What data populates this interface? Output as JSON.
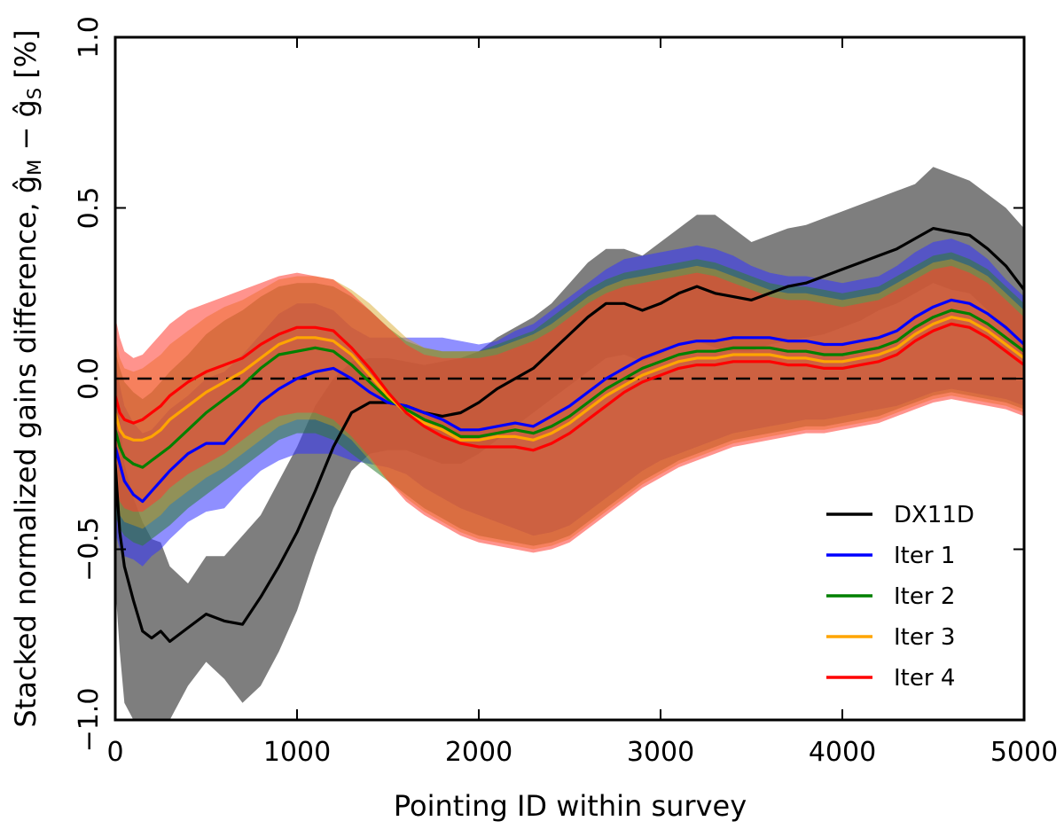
{
  "chart_data": {
    "type": "line",
    "xlabel": "Pointing ID within survey",
    "ylabel_main": "Stacked normalized gains difference, ",
    "ylabel_math": "ĝ",
    "ylabel_sub_m": "M",
    "ylabel_minus": " − ",
    "ylabel_sub_s": "S",
    "ylabel_unit": " [%]",
    "xlim": [
      0,
      5000
    ],
    "ylim": [
      -1.0,
      1.0
    ],
    "xticks": [
      0,
      1000,
      2000,
      3000,
      4000,
      5000
    ],
    "xtick_labels": [
      "0",
      "1000",
      "2000",
      "3000",
      "4000",
      "5000"
    ],
    "yticks": [
      -1.0,
      -0.5,
      0.0,
      0.5,
      1.0
    ],
    "ytick_labels": [
      "−1.0",
      "−0.5",
      "0.0",
      "0.5",
      "1.0"
    ],
    "reference_line": {
      "y": 0.0,
      "style": "dashed",
      "color": "#000000"
    },
    "legend_position": "lower-right",
    "series": [
      {
        "name": "DX11D",
        "color": "#000000",
        "band_color": "#707070",
        "band_opacity": 0.9,
        "x": [
          0,
          25,
          50,
          100,
          150,
          200,
          250,
          300,
          400,
          500,
          600,
          700,
          800,
          900,
          1000,
          1100,
          1200,
          1300,
          1400,
          1500,
          1600,
          1700,
          1800,
          1900,
          2000,
          2100,
          2200,
          2300,
          2400,
          2500,
          2600,
          2700,
          2800,
          2900,
          3000,
          3100,
          3200,
          3300,
          3400,
          3500,
          3600,
          3700,
          3800,
          3900,
          4000,
          4100,
          4200,
          4300,
          4400,
          4500,
          4600,
          4700,
          4800,
          4900,
          5000
        ],
        "y": [
          -0.25,
          -0.45,
          -0.55,
          -0.65,
          -0.74,
          -0.76,
          -0.74,
          -0.77,
          -0.73,
          -0.69,
          -0.71,
          -0.72,
          -0.64,
          -0.55,
          -0.45,
          -0.33,
          -0.2,
          -0.1,
          -0.07,
          -0.07,
          -0.08,
          -0.1,
          -0.11,
          -0.1,
          -0.07,
          -0.03,
          0.0,
          0.03,
          0.08,
          0.13,
          0.18,
          0.22,
          0.22,
          0.2,
          0.22,
          0.25,
          0.27,
          0.25,
          0.24,
          0.23,
          0.25,
          0.27,
          0.28,
          0.3,
          0.32,
          0.34,
          0.36,
          0.38,
          0.41,
          0.44,
          0.43,
          0.42,
          0.38,
          0.33,
          0.26
        ],
        "lower": [
          -0.6,
          -0.8,
          -0.95,
          -1.0,
          -1.02,
          -1.03,
          -1.02,
          -1.0,
          -0.9,
          -0.83,
          -0.88,
          -0.95,
          -0.9,
          -0.8,
          -0.68,
          -0.52,
          -0.38,
          -0.27,
          -0.22,
          -0.21,
          -0.21,
          -0.23,
          -0.25,
          -0.25,
          -0.22,
          -0.18,
          -0.14,
          -0.1,
          -0.06,
          -0.02,
          0.02,
          0.06,
          0.07,
          0.05,
          0.07,
          0.1,
          0.11,
          0.09,
          0.08,
          0.08,
          0.1,
          0.11,
          0.12,
          0.13,
          0.15,
          0.17,
          0.2,
          0.22,
          0.25,
          0.28,
          0.26,
          0.25,
          0.2,
          0.14,
          0.06
        ],
        "upper": [
          0.05,
          -0.12,
          -0.25,
          -0.35,
          -0.42,
          -0.47,
          -0.48,
          -0.55,
          -0.6,
          -0.52,
          -0.52,
          -0.46,
          -0.4,
          -0.3,
          -0.2,
          -0.08,
          0.0,
          0.05,
          0.06,
          0.06,
          0.05,
          0.04,
          0.05,
          0.06,
          0.08,
          0.12,
          0.15,
          0.18,
          0.22,
          0.28,
          0.34,
          0.38,
          0.38,
          0.36,
          0.4,
          0.44,
          0.48,
          0.48,
          0.44,
          0.4,
          0.42,
          0.44,
          0.45,
          0.47,
          0.49,
          0.51,
          0.53,
          0.55,
          0.57,
          0.62,
          0.6,
          0.58,
          0.54,
          0.5,
          0.44
        ]
      },
      {
        "name": "Iter 1",
        "color": "#0000ff",
        "band_color": "#3333ff",
        "band_opacity": 0.55,
        "x": [
          0,
          25,
          50,
          100,
          150,
          200,
          250,
          300,
          400,
          500,
          600,
          700,
          800,
          900,
          1000,
          1100,
          1200,
          1300,
          1400,
          1500,
          1600,
          1700,
          1800,
          1900,
          2000,
          2100,
          2200,
          2300,
          2400,
          2500,
          2600,
          2700,
          2800,
          2900,
          3000,
          3100,
          3200,
          3300,
          3400,
          3500,
          3600,
          3700,
          3800,
          3900,
          4000,
          4100,
          4200,
          4300,
          4400,
          4500,
          4600,
          4700,
          4800,
          4900,
          5000
        ],
        "y": [
          -0.2,
          -0.25,
          -0.3,
          -0.34,
          -0.36,
          -0.33,
          -0.3,
          -0.27,
          -0.22,
          -0.19,
          -0.19,
          -0.13,
          -0.07,
          -0.03,
          0.0,
          0.02,
          0.03,
          0.0,
          -0.04,
          -0.07,
          -0.08,
          -0.1,
          -0.12,
          -0.15,
          -0.15,
          -0.14,
          -0.13,
          -0.14,
          -0.11,
          -0.08,
          -0.04,
          0.0,
          0.03,
          0.06,
          0.08,
          0.1,
          0.11,
          0.11,
          0.12,
          0.12,
          0.12,
          0.11,
          0.11,
          0.1,
          0.1,
          0.11,
          0.12,
          0.14,
          0.18,
          0.21,
          0.23,
          0.22,
          0.19,
          0.15,
          0.1
        ],
        "lower": [
          -0.45,
          -0.5,
          -0.52,
          -0.53,
          -0.55,
          -0.52,
          -0.5,
          -0.47,
          -0.42,
          -0.39,
          -0.38,
          -0.32,
          -0.27,
          -0.24,
          -0.22,
          -0.22,
          -0.22,
          -0.24,
          -0.25,
          -0.26,
          -0.28,
          -0.32,
          -0.35,
          -0.38,
          -0.4,
          -0.42,
          -0.44,
          -0.46,
          -0.45,
          -0.43,
          -0.39,
          -0.35,
          -0.31,
          -0.27,
          -0.24,
          -0.22,
          -0.2,
          -0.18,
          -0.16,
          -0.15,
          -0.14,
          -0.13,
          -0.12,
          -0.12,
          -0.11,
          -0.1,
          -0.09,
          -0.08,
          -0.06,
          -0.04,
          -0.03,
          -0.04,
          -0.05,
          -0.06,
          -0.08
        ],
        "upper": [
          0.05,
          -0.02,
          -0.08,
          -0.13,
          -0.16,
          -0.15,
          -0.12,
          -0.09,
          -0.05,
          0.0,
          0.02,
          0.07,
          0.13,
          0.19,
          0.22,
          0.22,
          0.2,
          0.15,
          0.12,
          0.12,
          0.12,
          0.12,
          0.12,
          0.11,
          0.1,
          0.11,
          0.14,
          0.16,
          0.2,
          0.24,
          0.28,
          0.32,
          0.35,
          0.36,
          0.37,
          0.38,
          0.39,
          0.38,
          0.36,
          0.33,
          0.31,
          0.3,
          0.3,
          0.29,
          0.28,
          0.29,
          0.3,
          0.33,
          0.37,
          0.4,
          0.41,
          0.39,
          0.35,
          0.29,
          0.24
        ]
      },
      {
        "name": "Iter 2",
        "color": "#008000",
        "band_color": "#2e7d32",
        "band_opacity": 0.55,
        "x": [
          0,
          25,
          50,
          100,
          150,
          200,
          250,
          300,
          400,
          500,
          600,
          700,
          800,
          900,
          1000,
          1100,
          1200,
          1300,
          1400,
          1500,
          1600,
          1700,
          1800,
          1900,
          2000,
          2100,
          2200,
          2300,
          2400,
          2500,
          2600,
          2700,
          2800,
          2900,
          3000,
          3100,
          3200,
          3300,
          3400,
          3500,
          3600,
          3700,
          3800,
          3900,
          4000,
          4100,
          4200,
          4300,
          4400,
          4500,
          4600,
          4700,
          4800,
          4900,
          5000
        ],
        "y": [
          -0.15,
          -0.2,
          -0.23,
          -0.25,
          -0.26,
          -0.24,
          -0.22,
          -0.2,
          -0.15,
          -0.1,
          -0.06,
          -0.02,
          0.03,
          0.07,
          0.08,
          0.09,
          0.08,
          0.04,
          -0.01,
          -0.06,
          -0.09,
          -0.12,
          -0.14,
          -0.17,
          -0.17,
          -0.16,
          -0.15,
          -0.16,
          -0.14,
          -0.11,
          -0.07,
          -0.03,
          0.0,
          0.03,
          0.05,
          0.07,
          0.08,
          0.08,
          0.09,
          0.09,
          0.09,
          0.08,
          0.08,
          0.07,
          0.07,
          0.08,
          0.09,
          0.11,
          0.15,
          0.18,
          0.2,
          0.19,
          0.16,
          0.12,
          0.08
        ],
        "lower": [
          -0.4,
          -0.44,
          -0.46,
          -0.48,
          -0.49,
          -0.47,
          -0.45,
          -0.43,
          -0.38,
          -0.34,
          -0.3,
          -0.26,
          -0.22,
          -0.18,
          -0.16,
          -0.16,
          -0.18,
          -0.22,
          -0.26,
          -0.3,
          -0.34,
          -0.38,
          -0.41,
          -0.44,
          -0.46,
          -0.47,
          -0.48,
          -0.49,
          -0.48,
          -0.46,
          -0.42,
          -0.38,
          -0.34,
          -0.3,
          -0.27,
          -0.24,
          -0.22,
          -0.2,
          -0.18,
          -0.17,
          -0.16,
          -0.15,
          -0.14,
          -0.14,
          -0.13,
          -0.12,
          -0.11,
          -0.09,
          -0.07,
          -0.05,
          -0.04,
          -0.05,
          -0.06,
          -0.07,
          -0.09
        ],
        "upper": [
          0.08,
          0.03,
          -0.01,
          -0.04,
          -0.06,
          -0.04,
          -0.01,
          0.02,
          0.07,
          0.13,
          0.17,
          0.2,
          0.24,
          0.27,
          0.28,
          0.28,
          0.27,
          0.24,
          0.2,
          0.15,
          0.11,
          0.09,
          0.08,
          0.08,
          0.08,
          0.1,
          0.12,
          0.14,
          0.18,
          0.22,
          0.26,
          0.29,
          0.31,
          0.32,
          0.33,
          0.34,
          0.35,
          0.34,
          0.32,
          0.3,
          0.28,
          0.27,
          0.27,
          0.26,
          0.25,
          0.26,
          0.27,
          0.3,
          0.33,
          0.36,
          0.37,
          0.35,
          0.32,
          0.27,
          0.22
        ]
      },
      {
        "name": "Iter 3",
        "color": "#ffa500",
        "band_color": "#d4a017",
        "band_opacity": 0.45,
        "x": [
          0,
          25,
          50,
          100,
          150,
          200,
          250,
          300,
          400,
          500,
          600,
          700,
          800,
          900,
          1000,
          1100,
          1200,
          1300,
          1400,
          1500,
          1600,
          1700,
          1800,
          1900,
          2000,
          2100,
          2200,
          2300,
          2400,
          2500,
          2600,
          2700,
          2800,
          2900,
          3000,
          3100,
          3200,
          3300,
          3400,
          3500,
          3600,
          3700,
          3800,
          3900,
          4000,
          4100,
          4200,
          4300,
          4400,
          4500,
          4600,
          4700,
          4800,
          4900,
          5000
        ],
        "y": [
          -0.1,
          -0.15,
          -0.17,
          -0.18,
          -0.18,
          -0.17,
          -0.15,
          -0.12,
          -0.08,
          -0.04,
          -0.01,
          0.02,
          0.06,
          0.1,
          0.12,
          0.12,
          0.11,
          0.07,
          0.01,
          -0.05,
          -0.1,
          -0.13,
          -0.15,
          -0.18,
          -0.18,
          -0.17,
          -0.17,
          -0.18,
          -0.16,
          -0.13,
          -0.09,
          -0.05,
          -0.02,
          0.01,
          0.03,
          0.05,
          0.06,
          0.06,
          0.07,
          0.07,
          0.07,
          0.06,
          0.06,
          0.05,
          0.05,
          0.06,
          0.07,
          0.09,
          0.13,
          0.16,
          0.18,
          0.17,
          0.14,
          0.1,
          0.06
        ],
        "lower": [
          -0.35,
          -0.4,
          -0.42,
          -0.43,
          -0.44,
          -0.42,
          -0.4,
          -0.37,
          -0.33,
          -0.29,
          -0.26,
          -0.22,
          -0.18,
          -0.14,
          -0.12,
          -0.12,
          -0.14,
          -0.18,
          -0.24,
          -0.3,
          -0.35,
          -0.39,
          -0.42,
          -0.45,
          -0.47,
          -0.48,
          -0.49,
          -0.5,
          -0.49,
          -0.47,
          -0.43,
          -0.39,
          -0.35,
          -0.31,
          -0.28,
          -0.25,
          -0.23,
          -0.21,
          -0.19,
          -0.18,
          -0.17,
          -0.16,
          -0.15,
          -0.15,
          -0.14,
          -0.13,
          -0.12,
          -0.1,
          -0.08,
          -0.06,
          -0.05,
          -0.06,
          -0.07,
          -0.08,
          -0.1
        ],
        "upper": [
          0.12,
          0.06,
          0.03,
          0.02,
          0.03,
          0.05,
          0.07,
          0.1,
          0.14,
          0.18,
          0.21,
          0.23,
          0.26,
          0.29,
          0.3,
          0.3,
          0.29,
          0.26,
          0.22,
          0.17,
          0.12,
          0.09,
          0.08,
          0.08,
          0.08,
          0.09,
          0.11,
          0.13,
          0.16,
          0.2,
          0.24,
          0.27,
          0.29,
          0.3,
          0.31,
          0.32,
          0.33,
          0.32,
          0.3,
          0.28,
          0.26,
          0.25,
          0.25,
          0.24,
          0.23,
          0.24,
          0.25,
          0.28,
          0.31,
          0.34,
          0.35,
          0.33,
          0.3,
          0.25,
          0.2
        ]
      },
      {
        "name": "Iter 4",
        "color": "#ff0000",
        "band_color": "#ff3b30",
        "band_opacity": 0.55,
        "x": [
          0,
          25,
          50,
          100,
          150,
          200,
          250,
          300,
          400,
          500,
          600,
          700,
          800,
          900,
          1000,
          1100,
          1200,
          1300,
          1400,
          1500,
          1600,
          1700,
          1800,
          1900,
          2000,
          2100,
          2200,
          2300,
          2400,
          2500,
          2600,
          2700,
          2800,
          2900,
          3000,
          3100,
          3200,
          3300,
          3400,
          3500,
          3600,
          3700,
          3800,
          3900,
          4000,
          4100,
          4200,
          4300,
          4400,
          4500,
          4600,
          4700,
          4800,
          4900,
          5000
        ],
        "y": [
          -0.05,
          -0.1,
          -0.12,
          -0.13,
          -0.12,
          -0.1,
          -0.08,
          -0.05,
          -0.01,
          0.02,
          0.04,
          0.06,
          0.1,
          0.13,
          0.15,
          0.15,
          0.14,
          0.09,
          0.03,
          -0.04,
          -0.1,
          -0.14,
          -0.17,
          -0.19,
          -0.2,
          -0.2,
          -0.2,
          -0.21,
          -0.19,
          -0.16,
          -0.12,
          -0.08,
          -0.04,
          -0.01,
          0.01,
          0.03,
          0.04,
          0.04,
          0.05,
          0.05,
          0.05,
          0.04,
          0.04,
          0.03,
          0.03,
          0.04,
          0.05,
          0.07,
          0.11,
          0.14,
          0.16,
          0.15,
          0.12,
          0.08,
          0.04
        ],
        "lower": [
          -0.3,
          -0.36,
          -0.38,
          -0.39,
          -0.39,
          -0.37,
          -0.35,
          -0.32,
          -0.28,
          -0.25,
          -0.22,
          -0.18,
          -0.14,
          -0.11,
          -0.1,
          -0.1,
          -0.12,
          -0.17,
          -0.23,
          -0.3,
          -0.36,
          -0.4,
          -0.43,
          -0.46,
          -0.48,
          -0.49,
          -0.5,
          -0.51,
          -0.5,
          -0.48,
          -0.44,
          -0.4,
          -0.36,
          -0.32,
          -0.29,
          -0.26,
          -0.24,
          -0.22,
          -0.2,
          -0.19,
          -0.18,
          -0.17,
          -0.16,
          -0.16,
          -0.15,
          -0.14,
          -0.13,
          -0.11,
          -0.09,
          -0.07,
          -0.06,
          -0.07,
          -0.08,
          -0.09,
          -0.11
        ],
        "upper": [
          0.18,
          0.12,
          0.08,
          0.06,
          0.07,
          0.1,
          0.13,
          0.16,
          0.2,
          0.22,
          0.24,
          0.26,
          0.28,
          0.3,
          0.31,
          0.3,
          0.29,
          0.25,
          0.2,
          0.15,
          0.1,
          0.07,
          0.06,
          0.06,
          0.06,
          0.07,
          0.09,
          0.11,
          0.14,
          0.18,
          0.22,
          0.25,
          0.27,
          0.28,
          0.29,
          0.3,
          0.31,
          0.3,
          0.28,
          0.26,
          0.24,
          0.23,
          0.23,
          0.22,
          0.21,
          0.22,
          0.23,
          0.26,
          0.29,
          0.32,
          0.33,
          0.31,
          0.28,
          0.23,
          0.18
        ]
      }
    ]
  }
}
